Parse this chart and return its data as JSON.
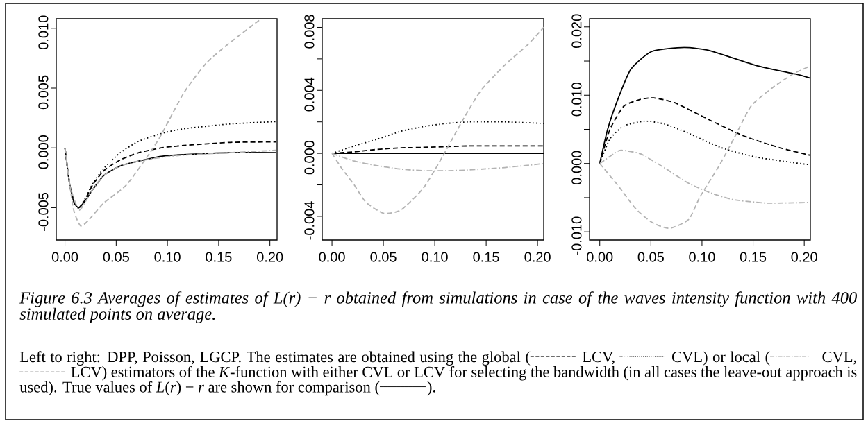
{
  "chart_data": [
    {
      "type": "line",
      "xlim": [
        -0.0085,
        0.207
      ],
      "ylim": [
        -0.0077,
        0.0108
      ],
      "xticks": [
        {
          "value": 0,
          "label": "0.00"
        },
        {
          "value": 0.05,
          "label": "0.05"
        },
        {
          "value": 0.1,
          "label": "0.10"
        },
        {
          "value": 0.15,
          "label": "0.15"
        },
        {
          "value": 0.2,
          "label": "0.20"
        }
      ],
      "yticks": [
        {
          "value": -0.005,
          "label": "-0.005"
        },
        {
          "value": 0,
          "label": "0.000"
        },
        {
          "value": 0.005,
          "label": "0.005"
        },
        {
          "value": 0.01,
          "label": "0.010"
        }
      ],
      "series": [
        {
          "color": "#000000",
          "line_style": "solid",
          "x": [
            0,
            0.0047,
            0.0091,
            0.0136,
            0.02,
            0.027,
            0.038,
            0.054,
            0.072,
            0.094,
            0.116,
            0.161,
            0.206
          ],
          "values": [
            0,
            -0.0031,
            -0.0046,
            -0.005,
            -0.0044,
            -0.0035,
            -0.0023,
            -0.0015,
            -0.0011,
            -0.0007,
            -0.00056,
            -0.0004,
            -0.0004
          ]
        },
        {
          "color": "#000000",
          "line_style": "dashed",
          "x": [
            0,
            0.0047,
            0.0091,
            0.0136,
            0.02,
            0.027,
            0.038,
            0.054,
            0.072,
            0.094,
            0.116,
            0.161,
            0.206
          ],
          "values": [
            0,
            -0.0031,
            -0.0046,
            -0.005,
            -0.0043,
            -0.0031,
            -0.0019,
            -0.001,
            -0.0004,
            0.0,
            0.0002,
            0.00046,
            0.0005
          ]
        },
        {
          "color": "#000000",
          "line_style": "dotted",
          "x": [
            0,
            0.0047,
            0.0091,
            0.0136,
            0.02,
            0.027,
            0.038,
            0.054,
            0.072,
            0.094,
            0.116,
            0.161,
            0.206
          ],
          "values": [
            0,
            -0.0031,
            -0.0046,
            -0.005,
            -0.0042,
            -0.003,
            -0.0017,
            -0.0004,
            0.00056,
            0.0012,
            0.0016,
            0.002,
            0.0022
          ]
        },
        {
          "color": "#b3b3b3",
          "line_style": "dashdot",
          "x": [
            0,
            0.005,
            0.0135,
            0.02,
            0.027,
            0.038,
            0.054,
            0.072,
            0.094,
            0.116,
            0.161,
            0.206
          ],
          "values": [
            0,
            -0.0032,
            -0.0052,
            -0.0045,
            -0.0035,
            -0.0023,
            -0.0015,
            -0.0011,
            -0.0008,
            -0.0006,
            -0.0004,
            -0.0002
          ]
        },
        {
          "color": "#b3b3b3",
          "line_style": "dashed",
          "x": [
            0,
            0.008,
            0.015,
            0.0225,
            0.038,
            0.06,
            0.083,
            0.094,
            0.116,
            0.138,
            0.161,
            0.19
          ],
          "values": [
            0,
            -0.005,
            -0.0065,
            -0.0061,
            -0.0046,
            -0.0031,
            -0.0004,
            0.0011,
            0.0046,
            0.0071,
            0.0088,
            0.0107
          ]
        }
      ]
    },
    {
      "type": "line",
      "xlim": [
        -0.0095,
        0.206
      ],
      "ylim": [
        -0.0055,
        0.00855
      ],
      "xticks": [
        {
          "value": 0,
          "label": "0.00"
        },
        {
          "value": 0.05,
          "label": "0.05"
        },
        {
          "value": 0.1,
          "label": "0.10"
        },
        {
          "value": 0.15,
          "label": "0.15"
        },
        {
          "value": 0.2,
          "label": "0.20"
        }
      ],
      "yticks": [
        {
          "value": -0.004,
          "label": "-0.004"
        },
        {
          "value": -0.002,
          "label": null
        },
        {
          "value": 0,
          "label": "0.000"
        },
        {
          "value": 0.002,
          "label": null
        },
        {
          "value": 0.004,
          "label": "0.004"
        },
        {
          "value": 0.006,
          "label": null
        },
        {
          "value": 0.008,
          "label": "0.008"
        }
      ],
      "series": [
        {
          "color": "#000000",
          "line_style": "solid",
          "x": [
            0,
            0.206
          ],
          "values": [
            0,
            0
          ]
        },
        {
          "color": "#000000",
          "line_style": "dashed",
          "x": [
            0,
            0.0216,
            0.044,
            0.067,
            0.089,
            0.134,
            0.206
          ],
          "values": [
            0,
            0.0001,
            0.00025,
            0.00035,
            0.00038,
            0.00047,
            0.00047
          ]
        },
        {
          "color": "#000000",
          "line_style": "dotted",
          "x": [
            0,
            0.0216,
            0.044,
            0.067,
            0.089,
            0.1115,
            0.134,
            0.168,
            0.206
          ],
          "values": [
            0,
            0.00047,
            0.0009,
            0.0014,
            0.0017,
            0.0019,
            0.002,
            0.002,
            0.0019
          ]
        },
        {
          "color": "#b3b3b3",
          "line_style": "dashdot",
          "x": [
            0,
            0.0216,
            0.044,
            0.067,
            0.089,
            0.1115,
            0.134,
            0.168,
            0.206
          ],
          "values": [
            0,
            -0.00049,
            -0.00078,
            -0.001,
            -0.0011,
            -0.0011,
            -0.00105,
            -0.0009,
            -0.00065
          ]
        },
        {
          "color": "#b3b3b3",
          "line_style": "dashed",
          "x": [
            0,
            0.01,
            0.0216,
            0.033,
            0.05,
            0.067,
            0.089,
            0.107,
            0.128,
            0.145,
            0.168,
            0.1905,
            0.206
          ],
          "values": [
            0,
            -0.001,
            -0.002,
            -0.0031,
            -0.0038,
            -0.0036,
            -0.0022,
            -0.00027,
            0.0022,
            0.004,
            0.0056,
            0.0069,
            0.008
          ]
        }
      ]
    },
    {
      "type": "line",
      "xlim": [
        -0.01,
        0.206
      ],
      "ylim": [
        -0.0112,
        0.0212
      ],
      "xticks": [
        {
          "value": 0,
          "label": "0.00"
        },
        {
          "value": 0.05,
          "label": "0.05"
        },
        {
          "value": 0.1,
          "label": "0.10"
        },
        {
          "value": 0.15,
          "label": "0.15"
        },
        {
          "value": 0.2,
          "label": "0.20"
        }
      ],
      "yticks": [
        {
          "value": -0.01,
          "label": "-0.010"
        },
        {
          "value": -0.005,
          "label": null
        },
        {
          "value": 0,
          "label": "0.000"
        },
        {
          "value": 0.005,
          "label": null
        },
        {
          "value": 0.01,
          "label": "0.010"
        },
        {
          "value": 0.015,
          "label": null
        },
        {
          "value": 0.02,
          "label": "0.020"
        }
      ],
      "series": [
        {
          "color": "#000000",
          "line_style": "solid",
          "x": [
            0,
            0.0077,
            0.0177,
            0.0304,
            0.0508,
            0.0825,
            0.1084,
            0.154,
            0.1913,
            0.206
          ],
          "values": [
            0,
            0.005,
            0.0094,
            0.0138,
            0.0164,
            0.017,
            0.0165,
            0.0143,
            0.0131,
            0.0125
          ]
        },
        {
          "color": "#000000",
          "line_style": "dashed",
          "x": [
            0,
            0.01,
            0.0236,
            0.04,
            0.053,
            0.0734,
            0.1084,
            0.1414,
            0.176,
            0.206
          ],
          "values": [
            0,
            0.005,
            0.0084,
            0.0094,
            0.0096,
            0.0089,
            0.0063,
            0.004,
            0.0023,
            0.0012
          ]
        },
        {
          "color": "#000000",
          "line_style": "dotted",
          "x": [
            0,
            0.01,
            0.0236,
            0.044,
            0.063,
            0.0857,
            0.119,
            0.154,
            0.206
          ],
          "values": [
            0,
            0.0036,
            0.0055,
            0.0062,
            0.0058,
            0.0045,
            0.0023,
            0.0009,
            -0.0002
          ]
        },
        {
          "color": "#b3b3b3",
          "line_style": "dashdot",
          "x": [
            0,
            0.0177,
            0.0236,
            0.04,
            0.063,
            0.0857,
            0.1084,
            0.131,
            0.164,
            0.206
          ],
          "values": [
            0,
            0.0018,
            0.0019,
            0.0014,
            -0.0006,
            -0.0028,
            -0.0043,
            -0.0053,
            -0.0058,
            -0.0057
          ]
        },
        {
          "color": "#b3b3b3",
          "line_style": "dashed",
          "x": [
            0,
            0.0177,
            0.035,
            0.0508,
            0.068,
            0.087,
            0.098,
            0.1165,
            0.131,
            0.148,
            0.169,
            0.189,
            0.206
          ],
          "values": [
            0,
            -0.0032,
            -0.0066,
            -0.0086,
            -0.0095,
            -0.0082,
            -0.0049,
            -0.0004,
            0.0036,
            0.0084,
            0.0111,
            0.0131,
            0.0143
          ]
        }
      ]
    },
    {
      "type": "other",
      "title": "Figure 6.3 Averages of estimates of L(r) − r obtained from simulations in case of the waves intensity function with 400 simulated points on average.",
      "annotations": [
        "Left to right: DPP, Poisson, LGCP. The estimates are obtained using the global (",
        " LCV, ",
        " CVL) or local (",
        " CVL, ",
        " LCV) estimators of the *K*-function with either CVL or LCV for selecting the bandwidth (in all cases the leave-out approach is used). True values of *L*(*r*) − *r* are shown for comparison (",
        ")."
      ]
    }
  ]
}
